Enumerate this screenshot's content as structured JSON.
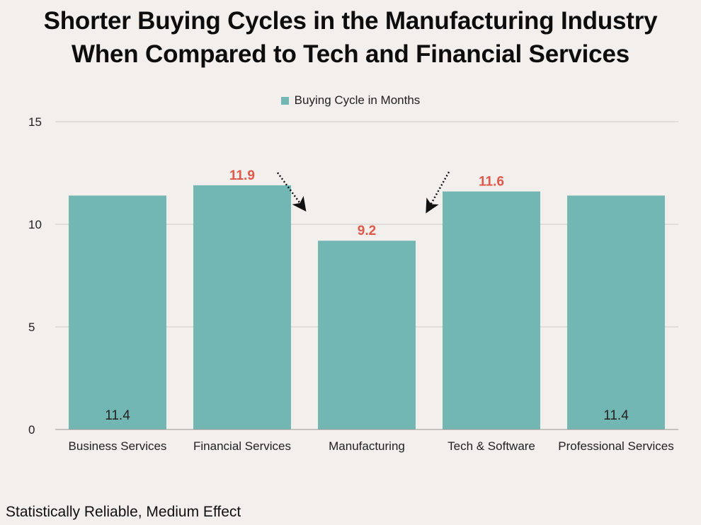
{
  "title_line1": "Shorter Buying Cycles in the Manufacturing Industry",
  "title_line2": "When Compared to Tech and Financial Services",
  "footnote": "Statistically Reliable, Medium Effect",
  "colors": {
    "bar": "#72b7b4",
    "highlight_label": "#e0584a",
    "grid": "#cfcac5",
    "axis": "#9a9691"
  },
  "chart_data": {
    "type": "bar",
    "categories": [
      "Business Services",
      "Financial Services",
      "Manufacturing",
      "Tech & Software",
      "Professional Services"
    ],
    "series": [
      {
        "name": "Buying Cycle in Months",
        "values": [
          11.4,
          11.9,
          9.2,
          11.6,
          11.4
        ]
      }
    ],
    "data_labels": [
      "11.4",
      "11.9",
      "9.2",
      "11.6",
      "11.4"
    ],
    "label_placement": [
      "inside-bottom",
      "above",
      "above",
      "above",
      "inside-bottom"
    ],
    "label_highlight": [
      false,
      true,
      true,
      true,
      false
    ],
    "ylim": [
      0,
      15
    ],
    "yticks": [
      0,
      5,
      10,
      15
    ],
    "xlabel": "",
    "ylabel": "",
    "grid": true,
    "legend_position": "top-center",
    "annotations": [
      "dotted arrow from Financial Services toward Manufacturing",
      "dotted arrow from Tech & Software toward Manufacturing"
    ]
  }
}
